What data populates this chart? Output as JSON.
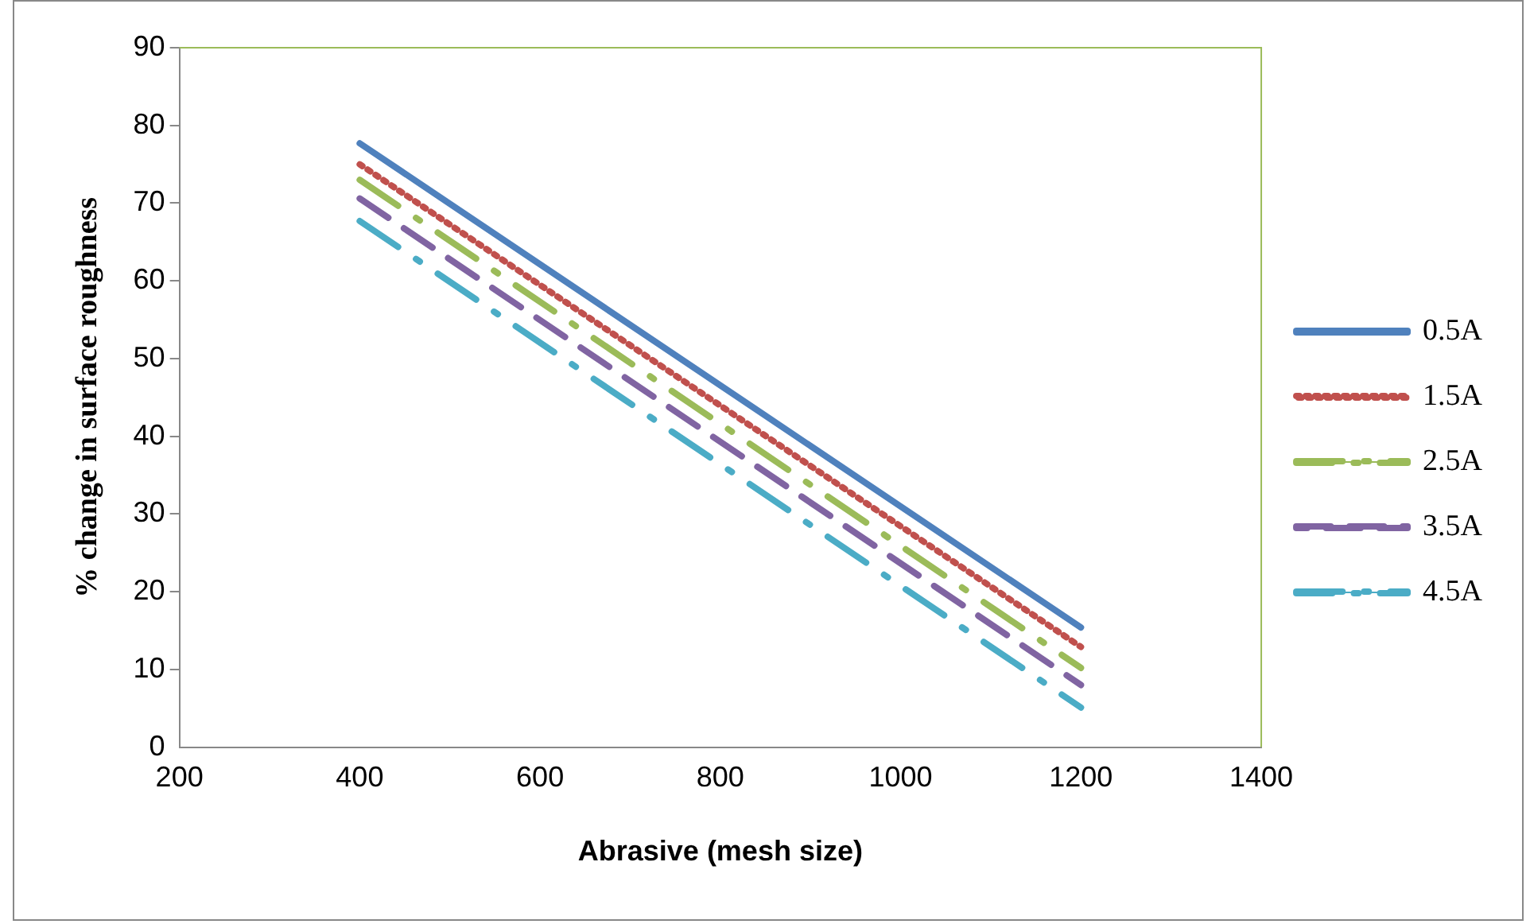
{
  "chart_data": {
    "type": "line",
    "xlabel": "Abrasive (mesh size)",
    "ylabel": "% change in surface roughness",
    "xlim": [
      200,
      1400
    ],
    "xticks": [
      200,
      400,
      600,
      800,
      1000,
      1200,
      1400
    ],
    "ylim": [
      0,
      90
    ],
    "yticks": [
      0,
      10,
      20,
      30,
      40,
      50,
      60,
      70,
      80,
      90
    ],
    "grid": false,
    "legend": "right",
    "marker": "none",
    "x": [
      400,
      1200
    ],
    "series": [
      {
        "name": "0.5A",
        "color": "#4f81bd",
        "line_style": "solid",
        "values": [
          77.7,
          15.4
        ]
      },
      {
        "name": "1.5A",
        "color": "#c0504d",
        "line_style": "dotted",
        "values": [
          75,
          12.9
        ]
      },
      {
        "name": "2.5A",
        "color": "#9bbb59",
        "line_style": "dashdot",
        "values": [
          73,
          10.2
        ]
      },
      {
        "name": "3.5A",
        "color": "#8064a2",
        "line_style": "dashed",
        "values": [
          70.6,
          8
        ]
      },
      {
        "name": "4.5A",
        "color": "#4bacc6",
        "line_style": "dashdot",
        "values": [
          67.7,
          5.1
        ]
      }
    ]
  }
}
